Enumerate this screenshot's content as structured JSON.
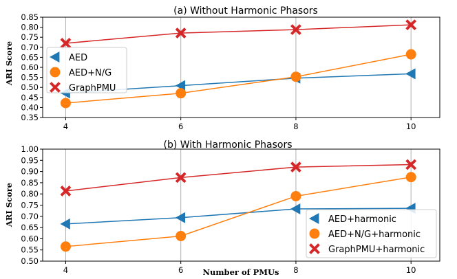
{
  "xlabel": "Number of PMUs",
  "colors": {
    "aed": "#1f77b4",
    "aedng": "#ff7f0e",
    "graph": "#d62728"
  },
  "chart_data": [
    {
      "type": "line",
      "title": "(a) Without Harmonic Phasors",
      "ylabel": "ARI Score",
      "x": [
        4,
        6,
        8,
        10
      ],
      "xticks": [
        "4",
        "6",
        "8",
        "10"
      ],
      "ylim": [
        0.35,
        0.85
      ],
      "yticks": [
        "0.35",
        "0.40",
        "0.45",
        "0.50",
        "0.55",
        "0.60",
        "0.65",
        "0.70",
        "0.75",
        "0.80",
        "0.85"
      ],
      "grid": "vertical",
      "legend_position": "center-left",
      "series": [
        {
          "name": "AED",
          "marker": "triangle-left",
          "color": "#1f77b4",
          "values": [
            0.472,
            0.509,
            0.546,
            0.568
          ]
        },
        {
          "name": "AED+N/G",
          "marker": "circle",
          "color": "#ff7f0e",
          "values": [
            0.422,
            0.471,
            0.553,
            0.665
          ]
        },
        {
          "name": "GraphPMU",
          "marker": "x",
          "color": "#d62728",
          "values": [
            0.72,
            0.771,
            0.788,
            0.812
          ]
        }
      ]
    },
    {
      "type": "line",
      "title": "(b) With Harmonic Phasors",
      "ylabel": "ARI Score",
      "x": [
        4,
        6,
        8,
        10
      ],
      "xticks": [
        "4",
        "6",
        "8",
        "10"
      ],
      "ylim": [
        0.5,
        1.0
      ],
      "yticks": [
        "0.50",
        "0.55",
        "0.60",
        "0.65",
        "0.70",
        "0.75",
        "0.80",
        "0.85",
        "0.90",
        "0.95",
        "1.00"
      ],
      "grid": "vertical",
      "legend_position": "lower-right",
      "series": [
        {
          "name": "AED+harmonic",
          "marker": "triangle-left",
          "color": "#1f77b4",
          "values": [
            0.666,
            0.694,
            0.733,
            0.736
          ]
        },
        {
          "name": "AED+N/G+harmonic",
          "marker": "circle",
          "color": "#ff7f0e",
          "values": [
            0.565,
            0.612,
            0.79,
            0.875
          ]
        },
        {
          "name": "GraphPMU+harmonic",
          "marker": "x",
          "color": "#d62728",
          "values": [
            0.813,
            0.873,
            0.92,
            0.931
          ]
        }
      ]
    }
  ]
}
